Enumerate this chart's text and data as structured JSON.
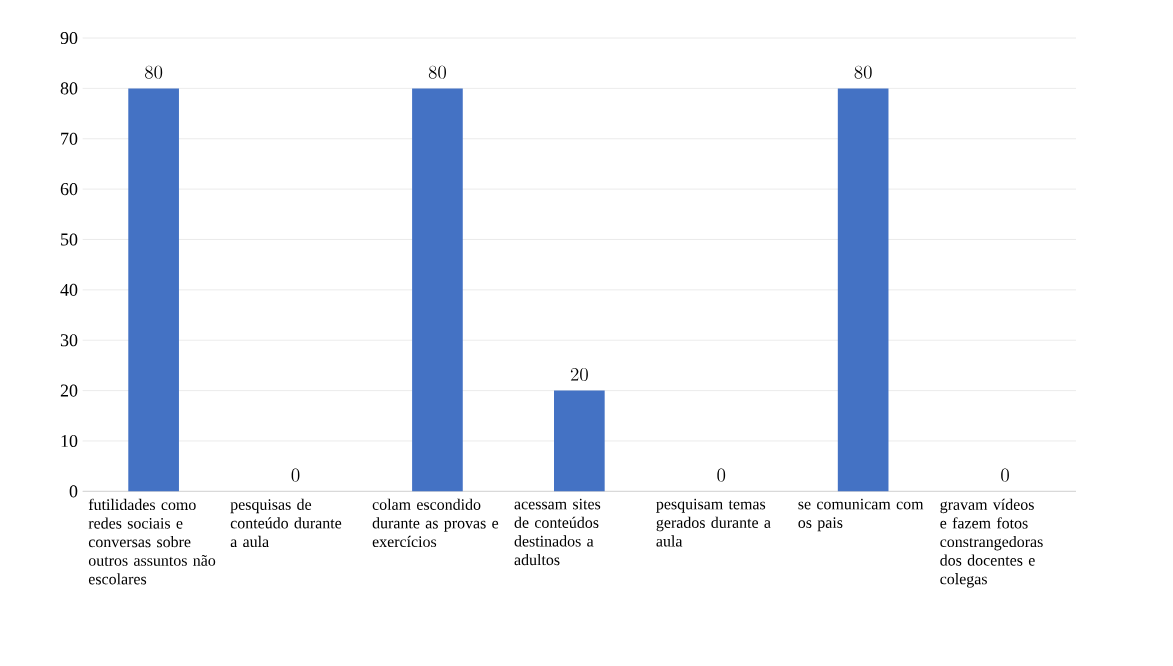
{
  "chart_data": {
    "type": "bar",
    "categories": [
      "futilidades como redes sociais e conversas sobre outros assuntos não escolares",
      "pesquisas de conteúdo durante a aula",
      "colam escondido durante as provas e exercícios",
      "acessam sites de conteúdos destinados a adultos",
      "pesquisam temas gerados durante a aula",
      "se comunicam com os pais",
      "gravam vídeos e fazem fotos constrangedoras dos docentes e colegas"
    ],
    "values": [
      80,
      0,
      80,
      20,
      0,
      80,
      0
    ],
    "color": "#4472c4",
    "ylim": [
      0,
      90
    ],
    "yticks": [
      0,
      10,
      20,
      30,
      40,
      50,
      60,
      70,
      80,
      90
    ],
    "grid": "y",
    "data_labels": true
  }
}
